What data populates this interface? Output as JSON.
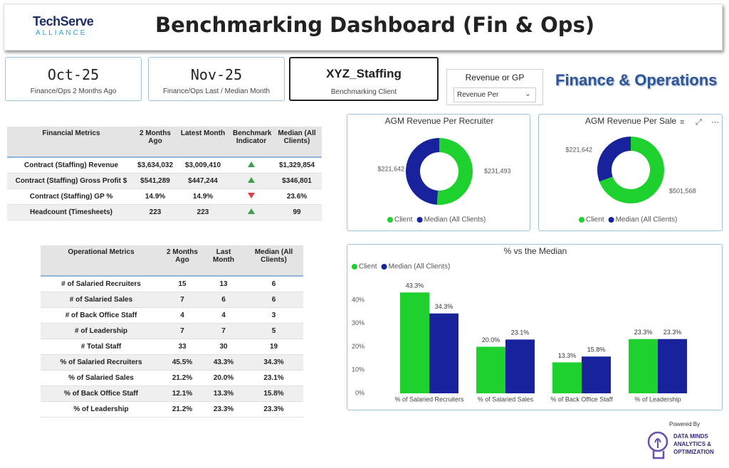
{
  "header": {
    "logo": {
      "name": "TechServe",
      "tagline": "ALLIANCE"
    },
    "title": "Benchmarking Dashboard (Fin & Ops)"
  },
  "cards": [
    {
      "value": "Oct-25",
      "label": "Finance/Ops 2 Months Ago"
    },
    {
      "value": "Nov-25",
      "label": "Finance/Ops Last / Median Month"
    },
    {
      "value": "XYZ_Staffing",
      "label": "Benchmarking Client"
    }
  ],
  "slicer": {
    "title": "Revenue or GP",
    "selected": "Revenue Per"
  },
  "section_title": "Finance & Operations",
  "financial_table": {
    "columns": [
      "Financial Metrics",
      "2 Months Ago",
      "Latest Month",
      "Benchmark Indicator",
      "Median (All Clients)"
    ],
    "rows": [
      [
        "Contract (Staffing) Revenue",
        "$3,634,032",
        "$3,009,410",
        "$1,329,854"
      ],
      [
        "Contract (Staffing) Gross Profit $",
        "$541,289",
        "$447,244",
        "$346,801"
      ],
      [
        "Contract (Staffing) GP %",
        "14.9%",
        "14.9%",
        "23.6%"
      ],
      [
        "Headcount (Timesheets)",
        "223",
        "223",
        "99"
      ]
    ],
    "indicators": [
      "up",
      "up",
      "down",
      "up"
    ]
  },
  "operational_table": {
    "columns": [
      "Operational Metrics",
      "2 Months Ago",
      "Last Month",
      "Median (All Clients)"
    ],
    "rows": [
      [
        "# of Salaried Recruiters",
        "15",
        "13",
        "6"
      ],
      [
        "# of Salaried Sales",
        "7",
        "6",
        "6"
      ],
      [
        "# of Back Office Staff",
        "4",
        "4",
        "3"
      ],
      [
        "# of Leadership",
        "7",
        "7",
        "5"
      ],
      [
        "# Total Staff",
        "33",
        "30",
        "19"
      ],
      [
        "% of Salaried Recruiters",
        "45.5%",
        "43.3%",
        "34.3%"
      ],
      [
        "% of Salaried Sales",
        "21.2%",
        "20.0%",
        "23.1%"
      ],
      [
        "% of Back Office Staff",
        "12.1%",
        "13.3%",
        "15.8%"
      ],
      [
        "% of Leadership",
        "21.2%",
        "23.3%",
        "23.3%"
      ]
    ]
  },
  "donut_charts": [
    {
      "type": "donut",
      "title": "AGM Revenue Per Recruiter",
      "categories": [
        "Client",
        "Median (All Clients)"
      ],
      "values": [
        231493,
        221642
      ],
      "value_labels": [
        "$231,493",
        "$221,642"
      ],
      "colors": [
        "#1fd12f",
        "#18239b"
      ]
    },
    {
      "type": "donut",
      "title": "AGM Revenue Per Sale",
      "categories": [
        "Client",
        "Median (All Clients)"
      ],
      "values": [
        501568,
        221642
      ],
      "value_labels": [
        "$501,568",
        "$221,642"
      ],
      "colors": [
        "#1fd12f",
        "#18239b"
      ]
    }
  ],
  "bar_chart": {
    "type": "bar",
    "title": "% vs the Median",
    "categories": [
      "% of Salaried Recruiters",
      "% of Salaried Sales",
      "% of Back Office Staff",
      "% of Leadership"
    ],
    "series": [
      {
        "name": "Client",
        "color": "#1fd12f",
        "values": [
          43.3,
          20.0,
          13.3,
          23.3
        ],
        "value_labels": [
          "43.3%",
          "20.0%",
          "13.3%",
          "23.3%"
        ]
      },
      {
        "name": "Median (All Clients)",
        "color": "#18239b",
        "values": [
          34.3,
          23.1,
          15.8,
          23.3
        ],
        "value_labels": [
          "34.3%",
          "23.1%",
          "15.8%",
          "23.3%"
        ]
      }
    ],
    "ylim": [
      0,
      46
    ],
    "yticks": [
      {
        "value": 0,
        "label": "0%"
      },
      {
        "value": 10,
        "label": "10%"
      },
      {
        "value": 20,
        "label": "20%"
      },
      {
        "value": 30,
        "label": "30%"
      },
      {
        "value": 40,
        "label": "40%"
      }
    ],
    "grid": false
  },
  "footer": {
    "powered_by": "Powered By",
    "brand": [
      "DATA MINDS",
      "ANALYTICS &",
      "OPTIMIZATION"
    ]
  }
}
